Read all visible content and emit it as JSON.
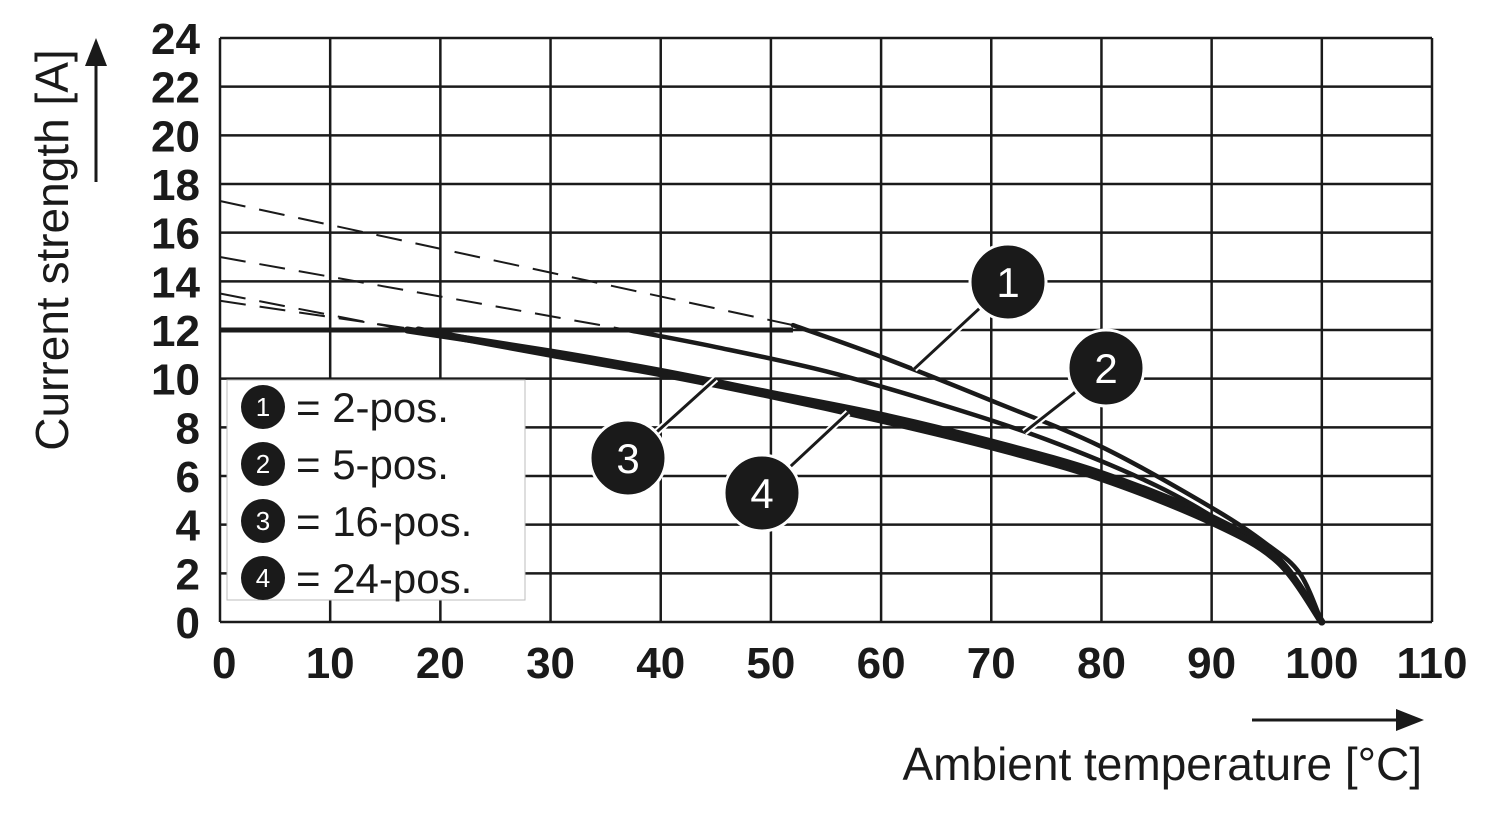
{
  "chart_data": {
    "type": "line",
    "xlabel": "Ambient temperature [°C]",
    "ylabel": "Current strength [A]",
    "xlim": [
      0,
      110
    ],
    "ylim": [
      0,
      24
    ],
    "x_ticks": [
      0,
      10,
      20,
      30,
      40,
      50,
      60,
      70,
      80,
      90,
      100,
      110
    ],
    "y_ticks": [
      0,
      2,
      4,
      6,
      8,
      10,
      12,
      14,
      16,
      18,
      20,
      22,
      24
    ],
    "x_tick_labels": [
      "0",
      "10",
      "20",
      "30",
      "40",
      "50",
      "60",
      "70",
      "80",
      "90",
      "100",
      "110"
    ],
    "y_tick_labels": [
      "0",
      "2",
      "4",
      "6",
      "8",
      "10",
      "12",
      "14",
      "16",
      "18",
      "20",
      "22",
      "24"
    ],
    "grid": true,
    "legend_position": "bottom-left",
    "legend": [
      {
        "marker": "1",
        "text": "= 2-pos."
      },
      {
        "marker": "2",
        "text": "= 5-pos."
      },
      {
        "marker": "3",
        "text": "= 16-pos."
      },
      {
        "marker": "4",
        "text": "= 24-pos."
      }
    ],
    "limit": {
      "value": 12,
      "x": [
        0,
        52
      ]
    },
    "series": [
      {
        "marker": "1",
        "dashed": {
          "x": [
            0,
            52
          ],
          "y": [
            17.3,
            12.2
          ]
        },
        "solid": {
          "x": [
            52,
            60,
            70,
            80,
            90,
            95,
            98,
            100
          ],
          "y": [
            12.2,
            10.9,
            9.1,
            7.2,
            4.7,
            3.2,
            2.0,
            0
          ]
        }
      },
      {
        "marker": "2",
        "dashed": {
          "x": [
            0,
            37
          ],
          "y": [
            15.0,
            12.0
          ]
        },
        "solid": {
          "x": [
            37,
            45,
            55,
            65,
            75,
            85,
            92,
            96,
            100
          ],
          "y": [
            12.0,
            11.3,
            10.3,
            9.0,
            7.5,
            5.6,
            3.8,
            2.6,
            0
          ]
        }
      },
      {
        "marker": "3",
        "dashed": {
          "x": [
            0,
            17
          ],
          "y": [
            13.5,
            12.0
          ]
        },
        "solid": {
          "x": [
            17,
            30,
            40,
            50,
            60,
            70,
            80,
            90,
            96,
            100
          ],
          "y": [
            12.0,
            11.1,
            10.3,
            9.4,
            8.5,
            7.4,
            6.1,
            4.3,
            2.6,
            0
          ]
        }
      },
      {
        "marker": "4",
        "dashed": {
          "x": [
            0,
            18
          ],
          "y": [
            13.2,
            12.0
          ]
        },
        "solid": {
          "x": [
            18,
            30,
            40,
            50,
            60,
            70,
            80,
            90,
            96,
            100
          ],
          "y": [
            12.0,
            11.0,
            10.2,
            9.3,
            8.3,
            7.2,
            5.9,
            4.1,
            2.5,
            0
          ]
        }
      }
    ],
    "callouts": [
      {
        "marker": "1",
        "at": [
          63,
          10.4
        ]
      },
      {
        "marker": "2",
        "at": [
          73,
          7.8
        ]
      },
      {
        "marker": "3",
        "at": [
          45,
          10.0
        ]
      },
      {
        "marker": "4",
        "at": [
          57,
          8.6
        ]
      }
    ]
  }
}
